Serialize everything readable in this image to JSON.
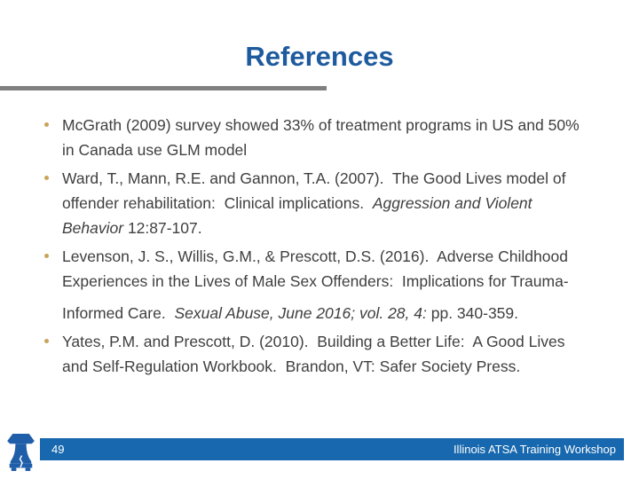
{
  "slide": {
    "title": "References",
    "bullets": [
      {
        "lines": [
          {
            "gap": false,
            "segments": [
              {
                "text": "McGrath (2009) survey showed 33% of treatment programs in US and 50%",
                "italic": false
              }
            ]
          },
          {
            "gap": false,
            "segments": [
              {
                "text": "in Canada use GLM model",
                "italic": false
              }
            ]
          }
        ]
      },
      {
        "lines": [
          {
            "gap": false,
            "segments": [
              {
                "text": "Ward, T., Mann, R.E. and Gannon, T.A. (2007).  The Good Lives model of",
                "italic": false
              }
            ]
          },
          {
            "gap": false,
            "segments": [
              {
                "text": "offender rehabilitation:  Clinical implications.  ",
                "italic": false
              },
              {
                "text": "Aggression and Violent",
                "italic": true
              }
            ]
          },
          {
            "gap": false,
            "segments": [
              {
                "text": "Behavior ",
                "italic": true
              },
              {
                "text": "12:87-107.",
                "italic": false
              }
            ]
          }
        ]
      },
      {
        "lines": [
          {
            "gap": false,
            "segments": [
              {
                "text": "Levenson, J. S., Willis, G.M., & Prescott, D.S. (2016).  Adverse Childhood",
                "italic": false
              }
            ]
          },
          {
            "gap": false,
            "segments": [
              {
                "text": "Experiences in the Lives of Male Sex Offenders:  Implications for Trauma-",
                "italic": false
              }
            ]
          },
          {
            "gap": true,
            "segments": [
              {
                "text": "Informed Care.  ",
                "italic": false
              },
              {
                "text": "Sexual Abuse, June 2016; vol. 28, 4:",
                "italic": true
              },
              {
                "text": " pp. 340-359.",
                "italic": false
              }
            ]
          }
        ]
      },
      {
        "lines": [
          {
            "gap": false,
            "segments": [
              {
                "text": "Yates, P.M. and Prescott, D. (2010).  Building a Better Life:  A Good Lives",
                "italic": false
              }
            ]
          },
          {
            "gap": false,
            "segments": [
              {
                "text": "and Self-Regulation Workbook.  Brandon, VT: Safer Society Press.",
                "italic": false
              }
            ]
          }
        ]
      }
    ],
    "footer": {
      "page_number": "49",
      "right_text": "Illinois ATSA Training Workshop"
    },
    "logo": "liberty-bell"
  },
  "colors": {
    "title_blue": "#1E5B9E",
    "rule_gray": "#808080",
    "footer_blue": "#1768AE",
    "bell_blue": "#1F5EA8",
    "bullet_tan": "#C9A35B",
    "body_text": "#3F3F3F"
  }
}
